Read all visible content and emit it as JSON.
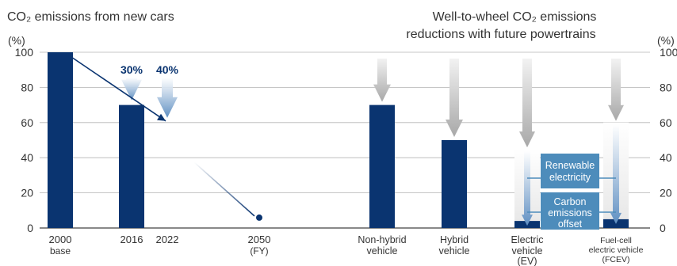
{
  "left_title": "CO₂ emissions from new cars",
  "right_title_line1": "Well-to-wheel CO₂ emissions",
  "right_title_line2": "reductions with future powertrains",
  "unit_label": "(%)",
  "colors": {
    "bar": "#0a3470",
    "gridline": "#b4b4b4",
    "baseline": "#404040",
    "arrow_blue": "#6f98c4",
    "arrow_gray": "#b9b9b9",
    "box_blue": "#4d8cbb",
    "trend": "#0a3470",
    "text": "#333333"
  },
  "chart_data": {
    "type": "bar",
    "ylim": [
      0,
      100
    ],
    "yticks": [
      0,
      20,
      40,
      60,
      80,
      100
    ],
    "grid": true,
    "left_panel": {
      "categories": [
        {
          "line1": "2000",
          "line2": "base",
          "value": 100
        },
        {
          "line1": "2016",
          "line2": "",
          "value": 70
        },
        {
          "line1": "2022",
          "line2": "",
          "value": 60
        },
        {
          "line1": "2050",
          "line2": "(FY)",
          "value": 5
        }
      ],
      "reduction_arrows": [
        {
          "label": "30%",
          "from": 100,
          "to": 70
        },
        {
          "label": "40%",
          "from": 100,
          "to": 60
        }
      ]
    },
    "right_panel": {
      "categories": [
        {
          "line1": "Non-hybrid",
          "line2": "vehicle",
          "line3": "",
          "value": 70
        },
        {
          "line1": "Hybrid",
          "line2": "vehicle",
          "line3": "",
          "value": 50
        },
        {
          "line1": "Electric",
          "line2": "vehicle",
          "line3": "(EV)",
          "value": 4
        },
        {
          "line1": "Fuel-cell",
          "line2": "electric vehicle",
          "line3": "(FCEV)",
          "value": 5
        }
      ],
      "boxes": [
        {
          "line1": "Renewable",
          "line2": "electricity"
        },
        {
          "line1": "Carbon",
          "line2": "emissions",
          "line3": "offset"
        }
      ]
    }
  }
}
